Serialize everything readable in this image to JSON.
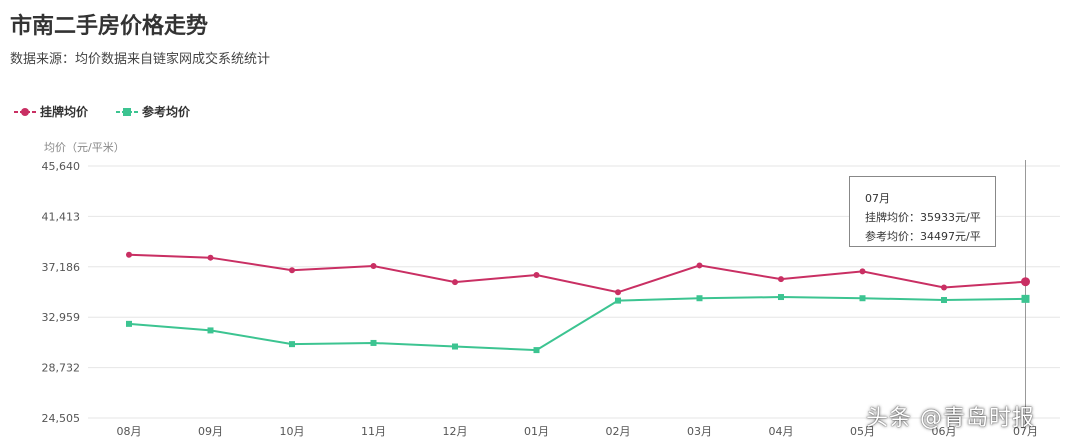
{
  "page": {
    "title": "市南二手房价格走势",
    "subtitle": "数据来源：均价数据来自链家网成交系统统计",
    "watermark": "头条 @青岛时报"
  },
  "colors": {
    "listing": "#c92f63",
    "reference": "#3cc491",
    "grid": "#e6e6e6",
    "cursor": "#999999"
  },
  "tooltip": {
    "month": "07月",
    "line1": "挂牌均价：35933元/平",
    "line2": "参考均价：34497元/平"
  },
  "chart_data": {
    "type": "line",
    "ylabel": "均价（元/平米）",
    "ylim": [
      24505,
      45640
    ],
    "yticks": [
      "45,640",
      "41,413",
      "37,186",
      "32,959",
      "28,732",
      "24,505"
    ],
    "ytick_values": [
      45640,
      41413,
      37186,
      32959,
      28732,
      24505
    ],
    "categories": [
      "08月",
      "09月",
      "10月",
      "11月",
      "12月",
      "01月",
      "02月",
      "03月",
      "04月",
      "05月",
      "06月",
      "07月"
    ],
    "grid": true,
    "legend_position": "top-left",
    "series": [
      {
        "name": "挂牌均价",
        "marker": "circle",
        "values": [
          38200,
          37950,
          36900,
          37250,
          35900,
          36500,
          35050,
          37300,
          36150,
          36800,
          35450,
          35933
        ]
      },
      {
        "name": "参考均价",
        "marker": "square",
        "values": [
          32400,
          31850,
          30700,
          30800,
          30500,
          30200,
          34350,
          34550,
          34650,
          34550,
          34400,
          34497
        ]
      }
    ]
  }
}
